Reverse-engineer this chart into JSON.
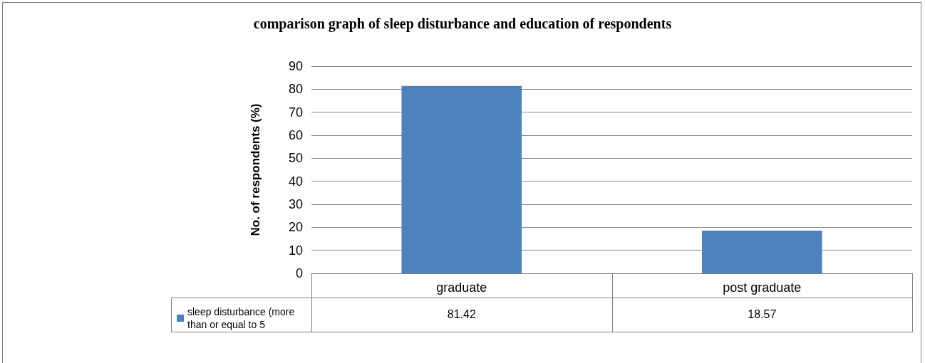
{
  "chart_data": {
    "type": "bar",
    "title": "comparison graph of sleep disturbance and education of respondents",
    "ylabel": "No. of respondents (%)",
    "categories": [
      "graduate",
      "post graduate"
    ],
    "series": [
      {
        "name": "sleep disturbance (more than or equal to 5",
        "color": "#4f81bd",
        "values": [
          81.42,
          18.57
        ]
      }
    ],
    "ylim": [
      0,
      90
    ],
    "yticks": [
      0,
      10,
      20,
      30,
      40,
      50,
      60,
      70,
      80,
      90
    ],
    "grid": "y",
    "legend": "bottom left",
    "data_labels": true
  }
}
